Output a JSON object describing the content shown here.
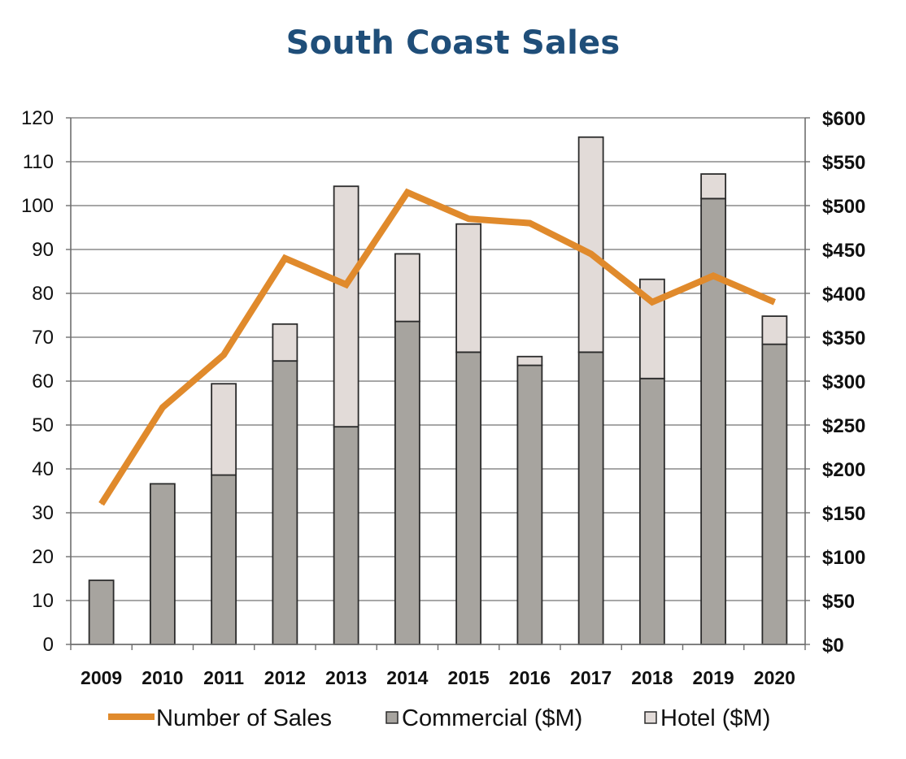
{
  "chart_data": {
    "type": "bar",
    "stacked": true,
    "title": "South Coast Sales",
    "categories": [
      "2009",
      "2010",
      "2011",
      "2012",
      "2013",
      "2014",
      "2015",
      "2016",
      "2017",
      "2018",
      "2019",
      "2020"
    ],
    "series": [
      {
        "name": "Commercial ($M)",
        "type": "bar",
        "axis": "right",
        "color": "#a7a49f",
        "values": [
          73,
          183,
          193,
          323,
          248,
          368,
          333,
          318,
          333,
          303,
          508,
          342
        ]
      },
      {
        "name": "Hotel ($M)",
        "type": "bar",
        "axis": "right",
        "color": "#e2dbd8",
        "values": [
          0,
          0,
          104,
          42,
          274,
          77,
          146,
          10,
          245,
          113,
          28,
          32
        ]
      },
      {
        "name": "Number of Sales",
        "type": "line",
        "axis": "left",
        "color": "#e08a2c",
        "values": [
          32,
          54,
          66,
          88,
          82,
          103,
          97,
          96,
          89,
          78,
          84,
          78
        ]
      }
    ],
    "y_left": {
      "min": 0,
      "max": 120,
      "step": 10,
      "ticks": [
        "0",
        "10",
        "20",
        "30",
        "40",
        "50",
        "60",
        "70",
        "80",
        "90",
        "100",
        "110",
        "120"
      ]
    },
    "y_right": {
      "min": 0,
      "max": 600,
      "step": 50,
      "ticks": [
        "$0",
        "$50",
        "$100",
        "$150",
        "$200",
        "$250",
        "$300",
        "$350",
        "$400",
        "$450",
        "$500",
        "$550",
        "$600"
      ]
    },
    "grid": true,
    "legend_position": "bottom"
  }
}
